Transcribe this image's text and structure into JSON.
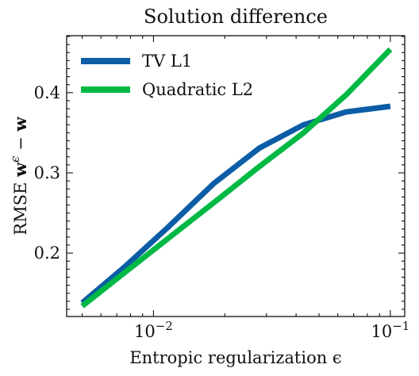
{
  "chart_data": {
    "type": "line",
    "title": "Solution difference",
    "xlabel": "Entropic regularization ϵ",
    "ylabel": "RMSE w^ϵ − w",
    "x_scale": "log",
    "xlim": [
      0.0043,
      0.115
    ],
    "ylim": [
      0.121,
      0.471
    ],
    "x_ticks": [
      {
        "value": 0.01,
        "base": "10",
        "exp": "−2"
      },
      {
        "value": 0.1,
        "base": "10",
        "exp": "−1"
      }
    ],
    "y_ticks": [
      {
        "value": 0.2,
        "label": "0.2"
      },
      {
        "value": 0.3,
        "label": "0.3"
      },
      {
        "value": 0.4,
        "label": "0.4"
      }
    ],
    "legend": {
      "position": "top-left"
    },
    "series": [
      {
        "name": "TV L1",
        "color": "#0c5da5",
        "x": [
          0.005,
          0.0075,
          0.0115,
          0.018,
          0.028,
          0.043,
          0.065,
          0.1
        ],
        "y": [
          0.138,
          0.182,
          0.232,
          0.287,
          0.331,
          0.36,
          0.376,
          0.383
        ]
      },
      {
        "name": "Quadratic L2",
        "color": "#00b945",
        "x": [
          0.005,
          0.0075,
          0.0115,
          0.018,
          0.028,
          0.043,
          0.065,
          0.1
        ],
        "y": [
          0.134,
          0.175,
          0.218,
          0.263,
          0.308,
          0.35,
          0.397,
          0.454
        ]
      }
    ]
  }
}
